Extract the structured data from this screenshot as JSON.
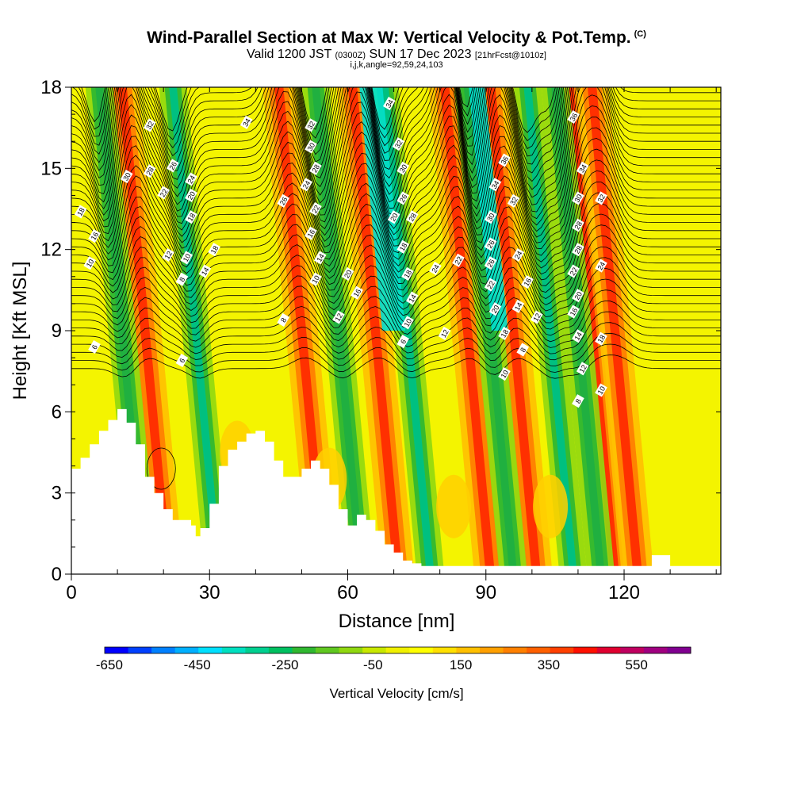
{
  "title": {
    "main": "Wind-Parallel Section at Max W: Vertical Velocity & Pot.Temp.",
    "copyright": "(C)",
    "valid_prefix": "Valid 1200 JST",
    "valid_utc": "(0300Z)",
    "valid_date": "SUN 17 Dec 2023",
    "forecast": "[21hrFcst@1010z]",
    "indices": "i,j,k,angle=92,59,24,103"
  },
  "chart_data": {
    "type": "heatmap",
    "xlabel": "Distance [nm]",
    "ylabel": "Height [Kft MSL]",
    "xlim": [
      0,
      141
    ],
    "ylim": [
      0,
      18
    ],
    "x_ticks": [
      "0",
      "30",
      "60",
      "90",
      "120"
    ],
    "y_ticks": [
      "0",
      "3",
      "6",
      "9",
      "12",
      "15",
      "18"
    ],
    "colorbar": {
      "label": "Vertical Velocity [cm/s]",
      "tick_labels": [
        "-650",
        "-450",
        "-250",
        "-50",
        "150",
        "350",
        "550"
      ],
      "colors": [
        "#0000ff",
        "#0040ff",
        "#0080ff",
        "#00b0ff",
        "#00e0ff",
        "#00e0c0",
        "#00d090",
        "#00c060",
        "#30b830",
        "#60c820",
        "#90d810",
        "#c8e800",
        "#f0f000",
        "#ffff00",
        "#ffe000",
        "#ffc000",
        "#ffa000",
        "#ff8000",
        "#ff6000",
        "#ff4000",
        "#ff1000",
        "#e00030",
        "#c00060",
        "#a00080",
        "#800090"
      ]
    },
    "terrain_profile_x_nm": [
      0,
      2,
      4,
      6,
      8,
      10,
      12,
      14,
      16,
      18,
      20,
      22,
      24,
      26,
      27,
      28,
      30,
      32,
      34,
      36,
      38,
      40,
      42,
      44,
      46,
      48,
      50,
      52,
      54,
      56,
      58,
      60,
      62,
      64,
      66,
      68,
      70,
      72,
      74,
      76,
      124,
      126,
      128,
      130,
      141
    ],
    "terrain_profile_kft": [
      3.9,
      4.3,
      4.8,
      5.3,
      5.7,
      6.1,
      5.6,
      4.8,
      3.6,
      3.0,
      2.4,
      2.0,
      2.0,
      1.8,
      1.4,
      1.7,
      2.6,
      4.0,
      4.6,
      4.9,
      5.2,
      5.3,
      4.9,
      4.2,
      3.6,
      3.6,
      3.9,
      4.2,
      3.9,
      3.3,
      2.4,
      1.8,
      2.2,
      2.0,
      1.6,
      1.1,
      0.8,
      0.5,
      0.4,
      0.3,
      0.3,
      0.7,
      0.7,
      0.3,
      0.3
    ],
    "updraft_bands_x_nm": [
      16,
      50,
      66,
      86,
      96,
      113,
      118
    ],
    "downdraft_bands_x_nm": [
      11,
      27,
      58,
      73,
      91,
      104,
      110
    ],
    "isentrope_labels": [
      {
        "text": "6",
        "x": 5,
        "y": 8.4
      },
      {
        "text": "6",
        "x": 24,
        "y": 7.9
      },
      {
        "text": "8",
        "x": 24,
        "y": 10.9
      },
      {
        "text": "8",
        "x": 46,
        "y": 9.4
      },
      {
        "text": "10",
        "x": 4,
        "y": 11.5
      },
      {
        "text": "10",
        "x": 25,
        "y": 11.7
      },
      {
        "text": "12",
        "x": 21,
        "y": 11.8
      },
      {
        "text": "14",
        "x": 29,
        "y": 11.2
      },
      {
        "text": "16",
        "x": 5,
        "y": 12.5
      },
      {
        "text": "18",
        "x": 2,
        "y": 13.4
      },
      {
        "text": "18",
        "x": 31,
        "y": 12.0
      },
      {
        "text": "18",
        "x": 26,
        "y": 13.2
      },
      {
        "text": "20",
        "x": 26,
        "y": 14.0
      },
      {
        "text": "22",
        "x": 20,
        "y": 14.1
      },
      {
        "text": "24",
        "x": 26,
        "y": 14.6
      },
      {
        "text": "26",
        "x": 22,
        "y": 15.1
      },
      {
        "text": "28",
        "x": 17,
        "y": 14.9
      },
      {
        "text": "30",
        "x": 12,
        "y": 14.7
      },
      {
        "text": "32",
        "x": 17,
        "y": 16.6
      },
      {
        "text": "34",
        "x": 38,
        "y": 16.7
      },
      {
        "text": "34",
        "x": 69,
        "y": 17.4
      },
      {
        "text": "32",
        "x": 52,
        "y": 16.6
      },
      {
        "text": "30",
        "x": 52,
        "y": 15.8
      },
      {
        "text": "28",
        "x": 53,
        "y": 15.0
      },
      {
        "text": "26",
        "x": 46,
        "y": 13.8
      },
      {
        "text": "24",
        "x": 51,
        "y": 14.4
      },
      {
        "text": "22",
        "x": 53,
        "y": 13.5
      },
      {
        "text": "16",
        "x": 52,
        "y": 12.6
      },
      {
        "text": "14",
        "x": 54,
        "y": 11.7
      },
      {
        "text": "10",
        "x": 53,
        "y": 10.9
      },
      {
        "text": "20",
        "x": 60,
        "y": 11.1
      },
      {
        "text": "16",
        "x": 62,
        "y": 10.4
      },
      {
        "text": "12",
        "x": 58,
        "y": 9.5
      },
      {
        "text": "32",
        "x": 71,
        "y": 15.9
      },
      {
        "text": "30",
        "x": 72,
        "y": 15.0
      },
      {
        "text": "26",
        "x": 72,
        "y": 13.9
      },
      {
        "text": "28",
        "x": 74,
        "y": 13.2
      },
      {
        "text": "20",
        "x": 70,
        "y": 13.2
      },
      {
        "text": "18",
        "x": 72,
        "y": 12.1
      },
      {
        "text": "18",
        "x": 73,
        "y": 11.1
      },
      {
        "text": "14",
        "x": 74,
        "y": 10.2
      },
      {
        "text": "10",
        "x": 73,
        "y": 9.3
      },
      {
        "text": "6",
        "x": 72,
        "y": 8.6
      },
      {
        "text": "24",
        "x": 79,
        "y": 11.3
      },
      {
        "text": "22",
        "x": 84,
        "y": 11.6
      },
      {
        "text": "12",
        "x": 81,
        "y": 8.9
      },
      {
        "text": "36",
        "x": 94,
        "y": 15.3
      },
      {
        "text": "34",
        "x": 92,
        "y": 14.4
      },
      {
        "text": "32",
        "x": 96,
        "y": 13.8
      },
      {
        "text": "30",
        "x": 91,
        "y": 13.2
      },
      {
        "text": "26",
        "x": 91,
        "y": 12.2
      },
      {
        "text": "26",
        "x": 91,
        "y": 11.5
      },
      {
        "text": "22",
        "x": 91,
        "y": 10.7
      },
      {
        "text": "20",
        "x": 92,
        "y": 9.8
      },
      {
        "text": "18",
        "x": 94,
        "y": 8.9
      },
      {
        "text": "10",
        "x": 94,
        "y": 7.4
      },
      {
        "text": "24",
        "x": 97,
        "y": 11.8
      },
      {
        "text": "16",
        "x": 99,
        "y": 10.8
      },
      {
        "text": "14",
        "x": 97,
        "y": 9.9
      },
      {
        "text": "12",
        "x": 101,
        "y": 9.5
      },
      {
        "text": "8",
        "x": 98,
        "y": 8.3
      },
      {
        "text": "36",
        "x": 109,
        "y": 16.9
      },
      {
        "text": "34",
        "x": 111,
        "y": 15.0
      },
      {
        "text": "30",
        "x": 110,
        "y": 13.9
      },
      {
        "text": "28",
        "x": 110,
        "y": 12.9
      },
      {
        "text": "28",
        "x": 110,
        "y": 12.0
      },
      {
        "text": "32",
        "x": 115,
        "y": 13.9
      },
      {
        "text": "22",
        "x": 109,
        "y": 11.2
      },
      {
        "text": "20",
        "x": 110,
        "y": 10.3
      },
      {
        "text": "16",
        "x": 109,
        "y": 9.7
      },
      {
        "text": "14",
        "x": 110,
        "y": 8.8
      },
      {
        "text": "12",
        "x": 111,
        "y": 7.6
      },
      {
        "text": "24",
        "x": 115,
        "y": 11.4
      },
      {
        "text": "18",
        "x": 115,
        "y": 8.7
      },
      {
        "text": "10",
        "x": 115,
        "y": 6.8
      },
      {
        "text": "8",
        "x": 110,
        "y": 6.4
      }
    ]
  }
}
